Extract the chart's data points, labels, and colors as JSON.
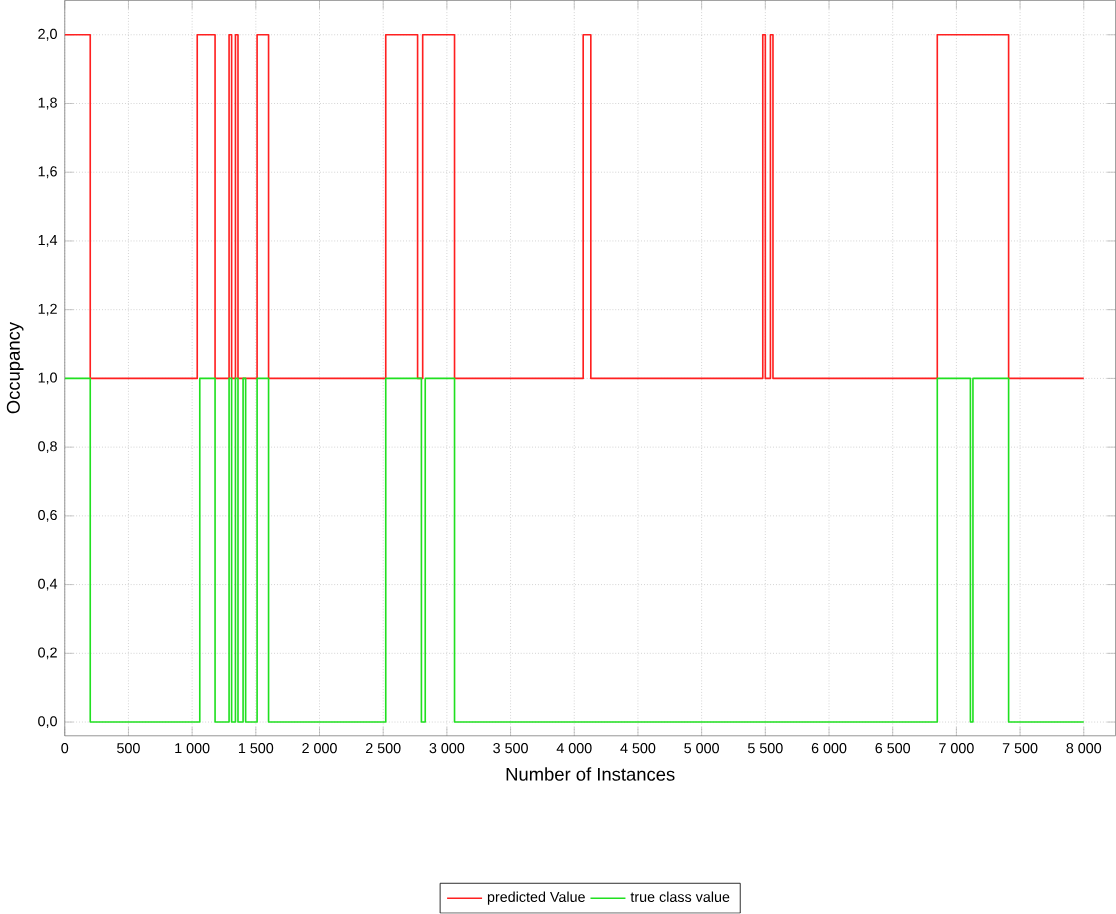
{
  "chart_data": {
    "type": "step",
    "xlabel": "Number of Instances",
    "ylabel": "Occupancy",
    "series": [
      {
        "name": "predicted Value",
        "color": "#ff2020",
        "x": [
          0,
          200,
          1040,
          1180,
          1290,
          1310,
          1340,
          1360,
          1510,
          1600,
          2520,
          2770,
          2810,
          3060,
          4070,
          4130,
          5480,
          5500,
          5540,
          5560,
          6850,
          7410,
          8000
        ],
        "values": [
          2,
          1,
          2,
          1,
          2,
          1,
          2,
          1,
          2,
          1,
          2,
          1,
          2,
          1,
          2,
          1,
          2,
          1,
          2,
          1,
          2,
          1,
          1
        ]
      },
      {
        "name": "true class value",
        "color": "#20e020",
        "x": [
          0,
          200,
          1060,
          1180,
          1290,
          1310,
          1340,
          1360,
          1400,
          1420,
          1510,
          1600,
          2520,
          2800,
          2830,
          3060,
          6850,
          7110,
          7130,
          7410,
          8000
        ],
        "values": [
          1,
          0,
          1,
          0,
          1,
          0,
          1,
          0,
          1,
          0,
          1,
          0,
          1,
          0,
          1,
          0,
          1,
          0,
          1,
          0,
          0
        ]
      }
    ],
    "xlim": [
      0,
      8250
    ],
    "ylim": [
      -0.04,
      2.1
    ],
    "xticks": [
      0,
      500,
      {
        "value": 1000,
        "label": "1 000"
      },
      {
        "value": 1500,
        "label": "1 500"
      },
      {
        "value": 2000,
        "label": "2 000"
      },
      {
        "value": 2500,
        "label": "2 500"
      },
      {
        "value": 3000,
        "label": "3 000"
      },
      {
        "value": 3500,
        "label": "3 500"
      },
      {
        "value": 4000,
        "label": "4 000"
      },
      {
        "value": 4500,
        "label": "4 500"
      },
      {
        "value": 5000,
        "label": "5 000"
      },
      {
        "value": 5500,
        "label": "5 500"
      },
      {
        "value": 6000,
        "label": "6 000"
      },
      {
        "value": 6500,
        "label": "6 500"
      },
      {
        "value": 7000,
        "label": "7 000"
      },
      {
        "value": 7500,
        "label": "7 500"
      },
      {
        "value": 8000,
        "label": "8 000"
      }
    ],
    "yticks": [
      {
        "value": 0,
        "label": "0,0"
      },
      {
        "value": 0.2,
        "label": "0,2"
      },
      {
        "value": 0.4,
        "label": "0,4"
      },
      {
        "value": 0.6,
        "label": "0,6"
      },
      {
        "value": 0.8,
        "label": "0,8"
      },
      {
        "value": 1.0,
        "label": "1,0"
      },
      {
        "value": 1.2,
        "label": "1,2"
      },
      {
        "value": 1.4,
        "label": "1,4"
      },
      {
        "value": 1.6,
        "label": "1,6"
      },
      {
        "value": 1.8,
        "label": "1,8"
      },
      {
        "value": 2.0,
        "label": "2,0"
      }
    ],
    "grid": true,
    "legend": "bottom",
    "marker": "none",
    "line_style": "solid"
  }
}
